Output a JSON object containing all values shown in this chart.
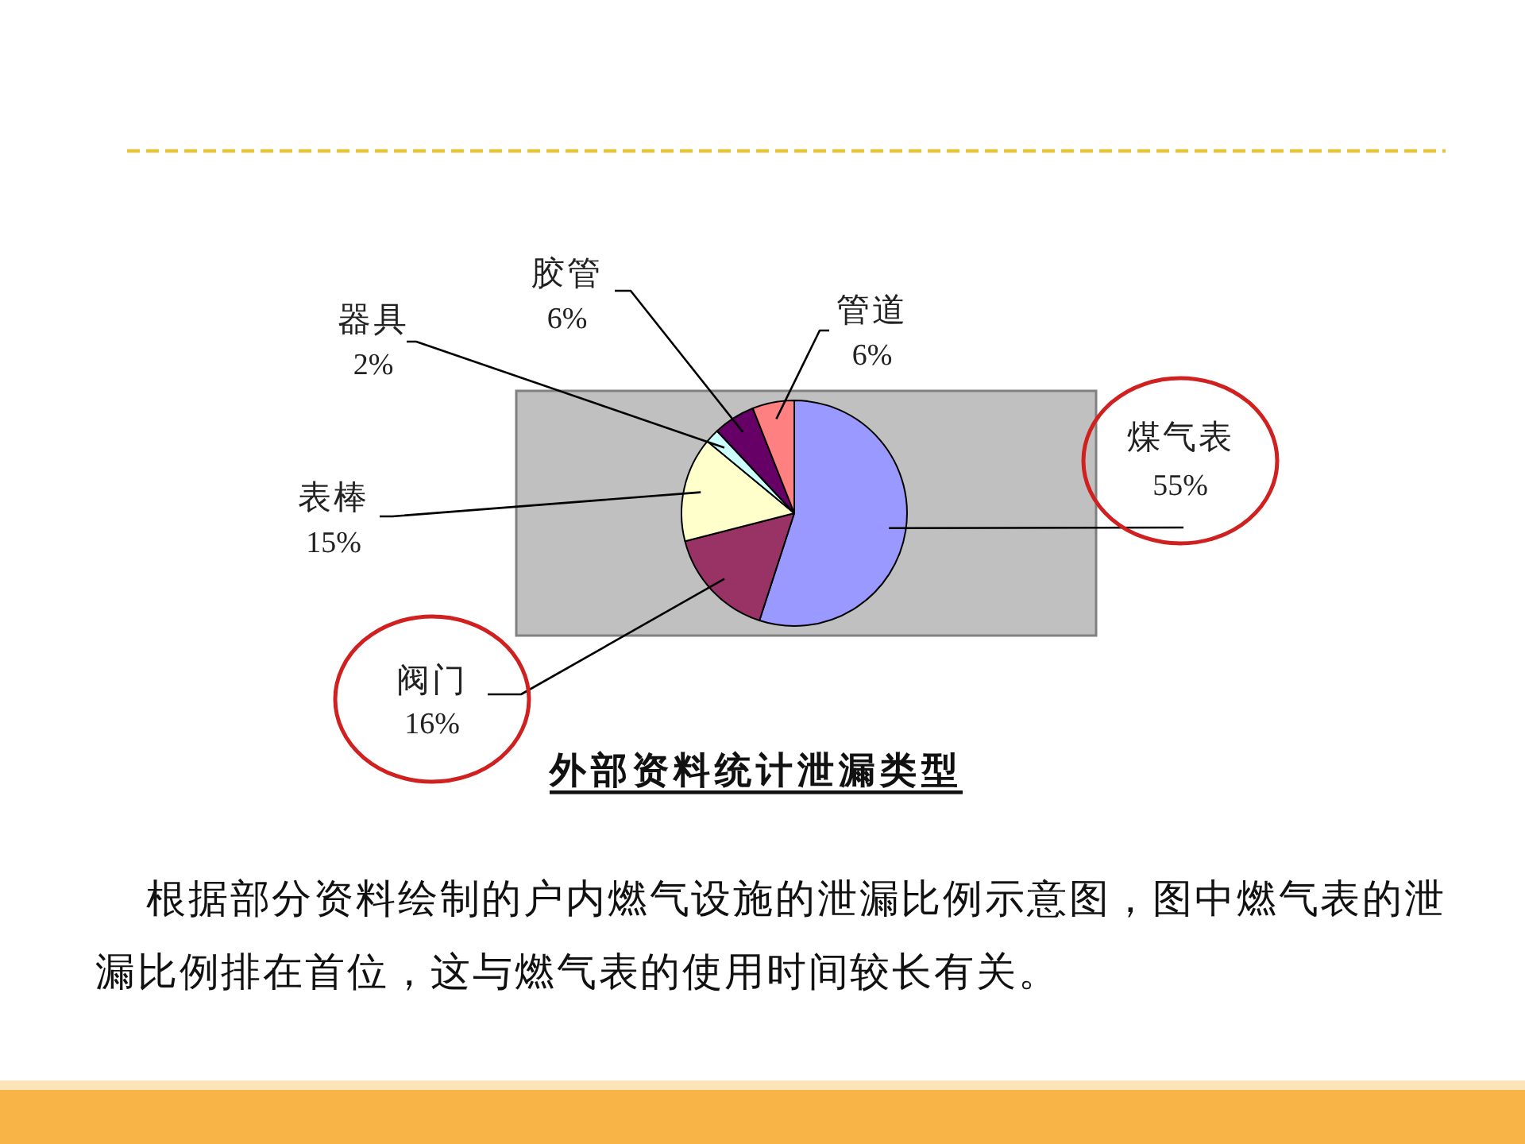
{
  "chart_data": {
    "type": "pie",
    "title": "外部资料统计泄漏类型",
    "categories": [
      "煤气表",
      "阀门",
      "表棒",
      "器具",
      "胶管",
      "管道"
    ],
    "values": [
      55,
      16,
      15,
      2,
      6,
      6
    ],
    "colors": [
      "#9999ff",
      "#993366",
      "#ffffcc",
      "#ccffff",
      "#660066",
      "#ff8080"
    ],
    "value_labels": [
      "55%",
      "16%",
      "15%",
      "2%",
      "6%",
      "6%"
    ],
    "annotations": [
      "根据部分资料绘制的户内燃气设施的泄漏比例示意图，图中燃气表的泄漏比例排在首位，这与燃气表的使用时间较长有关。"
    ]
  }
}
